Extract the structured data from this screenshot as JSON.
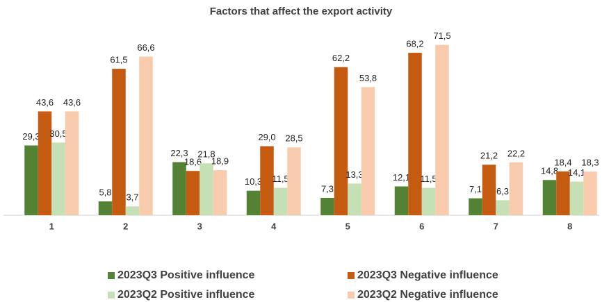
{
  "chart_data": {
    "type": "bar",
    "title": "Factors that affect the export activity",
    "categories": [
      "1",
      "2",
      "3",
      "4",
      "5",
      "6",
      "7",
      "8"
    ],
    "series": [
      {
        "name": "2023Q3 Positive influence",
        "color": "#548235",
        "values": [
          29.3,
          5.8,
          22.3,
          10.3,
          7.3,
          12.1,
          7.1,
          14.8
        ],
        "value_labels": [
          "29,3",
          "5,8",
          "22,3",
          "10,3",
          "7,3",
          "12,1",
          "7,1",
          "14,8"
        ]
      },
      {
        "name": "2023Q3 Negative influence",
        "color": "#c55a11",
        "values": [
          43.6,
          61.5,
          18.6,
          29.0,
          62.2,
          68.2,
          21.2,
          18.4
        ],
        "value_labels": [
          "43,6",
          "61,5",
          "18,6",
          "29,0",
          "62,2",
          "68,2",
          "21,2",
          "18,4"
        ]
      },
      {
        "name": "2023Q2 Positive influence",
        "color": "#c5e0b4",
        "values": [
          30.5,
          3.7,
          21.8,
          11.5,
          13.3,
          11.5,
          6.3,
          14.1
        ],
        "value_labels": [
          "30,5",
          "3,7",
          "21,8",
          "11,5",
          "13,3",
          "11,5",
          "6,3",
          "14,1"
        ]
      },
      {
        "name": "2023Q2 Negative influence",
        "color": "#f8cbad",
        "values": [
          43.6,
          66.6,
          18.9,
          28.5,
          53.8,
          71.5,
          22.2,
          18.3
        ],
        "value_labels": [
          "43,6",
          "66,6",
          "18,9",
          "28,5",
          "53,8",
          "71,5",
          "22,2",
          "18,3"
        ]
      }
    ]
  }
}
